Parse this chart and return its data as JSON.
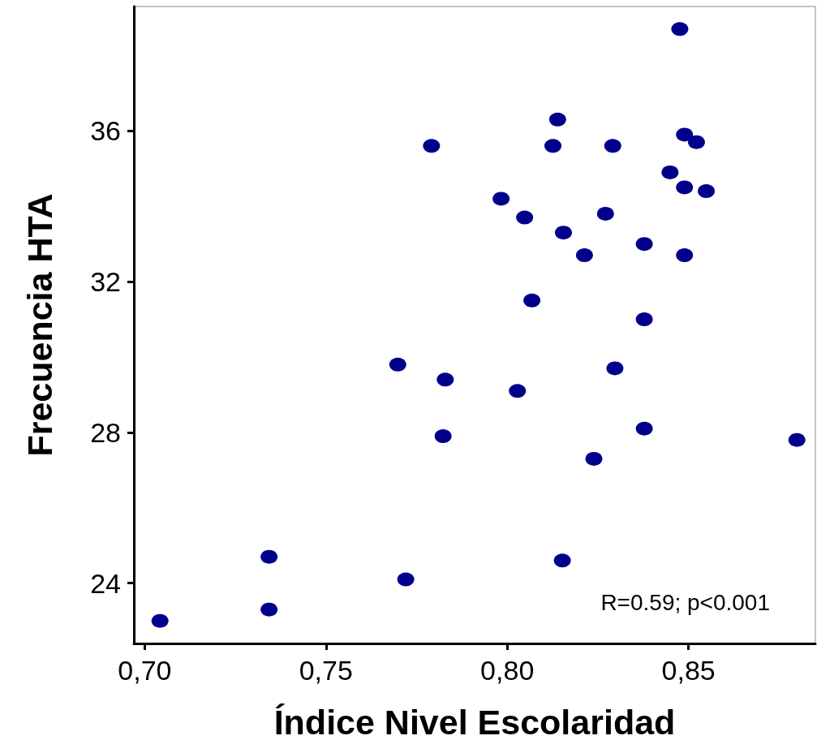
{
  "chart_data": {
    "type": "scatter",
    "xlabel": "Índice Nivel Escolaridad",
    "ylabel": "Frecuencia HTA",
    "annotations": [
      "R=0.59; p<0.001"
    ],
    "xlim": [
      0.697,
      0.885
    ],
    "xticks": [
      {
        "value": 0.7,
        "label": "0,70"
      },
      {
        "value": 0.75,
        "label": "0,75"
      },
      {
        "value": 0.8,
        "label": "0,80"
      },
      {
        "value": 0.85,
        "label": "0,85"
      }
    ],
    "ylim": [
      22.4,
      39.3
    ],
    "yticks": [
      24,
      28,
      32,
      36
    ],
    "grid": false,
    "marker": "circle",
    "series": [
      {
        "color": "#00008b",
        "x": [
          0.8476,
          0.8139,
          0.7791,
          0.8126,
          0.8291,
          0.8489,
          0.8522,
          0.8449,
          0.8489,
          0.8549,
          0.7983,
          0.8048,
          0.8271,
          0.8155,
          0.8378,
          0.8213,
          0.8489,
          0.8068,
          0.8378,
          0.7698,
          0.7829,
          0.8028,
          0.8297,
          0.8378,
          0.7823,
          0.8239,
          0.8799,
          0.7343,
          0.7343,
          0.772,
          0.8152,
          0.7042
        ],
        "values": [
          38.7,
          36.3,
          35.6,
          35.6,
          35.6,
          35.9,
          35.7,
          34.9,
          34.5,
          34.4,
          34.2,
          33.7,
          33.8,
          33.3,
          33.0,
          32.7,
          32.7,
          31.5,
          31.0,
          29.8,
          29.4,
          29.1,
          29.7,
          28.1,
          27.9,
          27.3,
          27.8,
          24.7,
          23.3,
          24.1,
          24.6,
          23.0
        ]
      }
    ]
  }
}
